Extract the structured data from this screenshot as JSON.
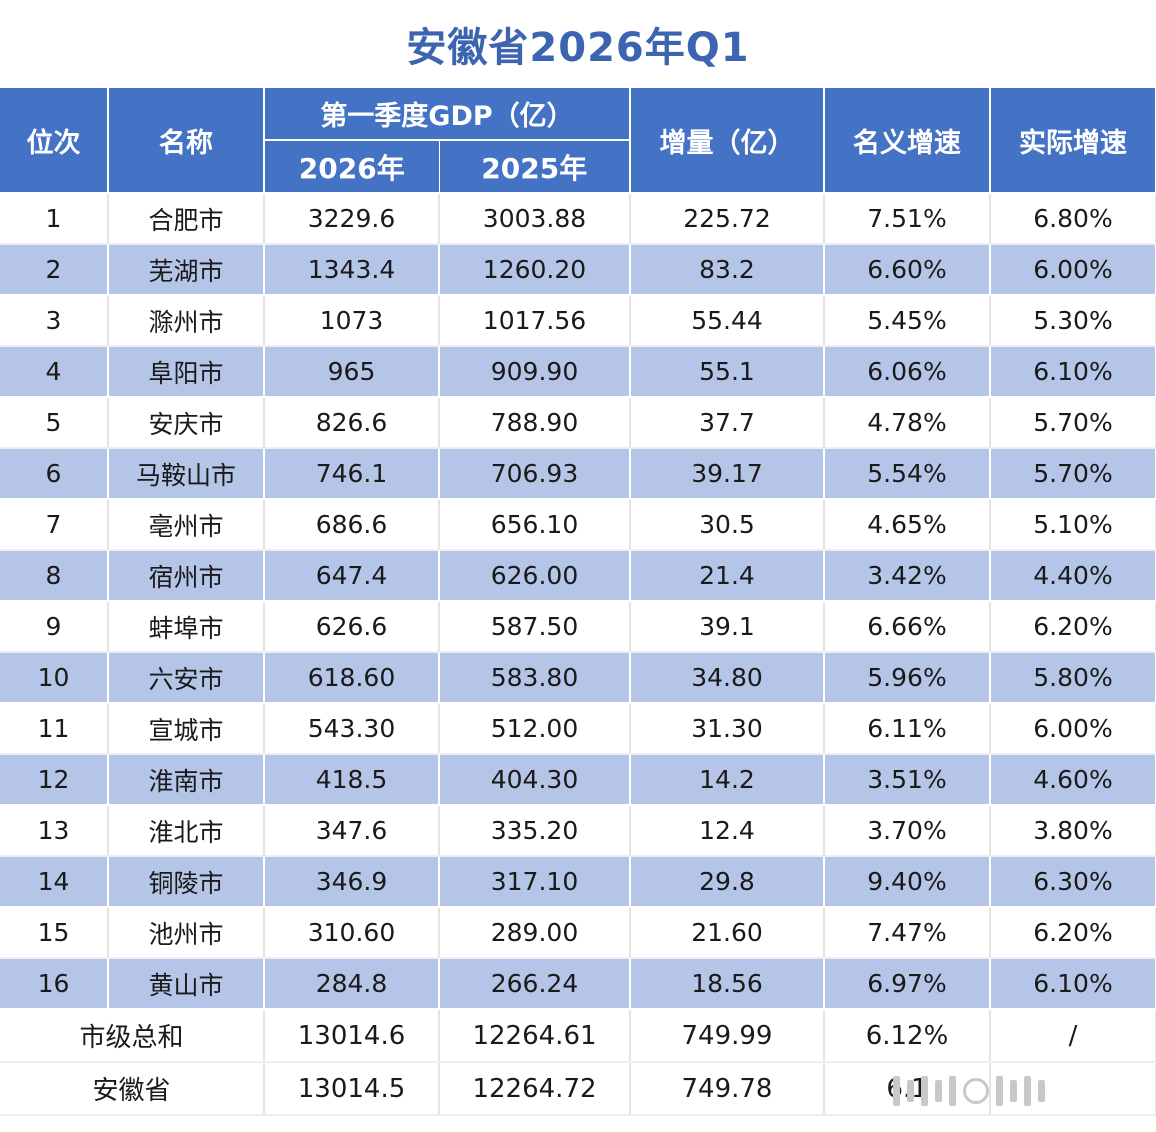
{
  "title": "安徽省2026年Q1",
  "header": {
    "rank": "位次",
    "name": "名称",
    "gdp_group": "第一季度GDP（亿）",
    "year_2026": "2026年",
    "year_2025": "2025年",
    "increase": "增量（亿）",
    "nominal": "名义增速",
    "real": "实际增速"
  },
  "rows": [
    {
      "rank": "1",
      "name": "合肥市",
      "gdp2026": "3229.6",
      "gdp2025": "3003.88",
      "inc": "225.72",
      "nominal": "7.51%",
      "real": "6.80%"
    },
    {
      "rank": "2",
      "name": "芜湖市",
      "gdp2026": "1343.4",
      "gdp2025": "1260.20",
      "inc": "83.2",
      "nominal": "6.60%",
      "real": "6.00%"
    },
    {
      "rank": "3",
      "name": "滁州市",
      "gdp2026": "1073",
      "gdp2025": "1017.56",
      "inc": "55.44",
      "nominal": "5.45%",
      "real": "5.30%"
    },
    {
      "rank": "4",
      "name": "阜阳市",
      "gdp2026": "965",
      "gdp2025": "909.90",
      "inc": "55.1",
      "nominal": "6.06%",
      "real": "6.10%"
    },
    {
      "rank": "5",
      "name": "安庆市",
      "gdp2026": "826.6",
      "gdp2025": "788.90",
      "inc": "37.7",
      "nominal": "4.78%",
      "real": "5.70%"
    },
    {
      "rank": "6",
      "name": "马鞍山市",
      "gdp2026": "746.1",
      "gdp2025": "706.93",
      "inc": "39.17",
      "nominal": "5.54%",
      "real": "5.70%"
    },
    {
      "rank": "7",
      "name": "亳州市",
      "gdp2026": "686.6",
      "gdp2025": "656.10",
      "inc": "30.5",
      "nominal": "4.65%",
      "real": "5.10%"
    },
    {
      "rank": "8",
      "name": "宿州市",
      "gdp2026": "647.4",
      "gdp2025": "626.00",
      "inc": "21.4",
      "nominal": "3.42%",
      "real": "4.40%"
    },
    {
      "rank": "9",
      "name": "蚌埠市",
      "gdp2026": "626.6",
      "gdp2025": "587.50",
      "inc": "39.1",
      "nominal": "6.66%",
      "real": "6.20%"
    },
    {
      "rank": "10",
      "name": "六安市",
      "gdp2026": "618.60",
      "gdp2025": "583.80",
      "inc": "34.80",
      "nominal": "5.96%",
      "real": "5.80%"
    },
    {
      "rank": "11",
      "name": "宣城市",
      "gdp2026": "543.30",
      "gdp2025": "512.00",
      "inc": "31.30",
      "nominal": "6.11%",
      "real": "6.00%"
    },
    {
      "rank": "12",
      "name": "淮南市",
      "gdp2026": "418.5",
      "gdp2025": "404.30",
      "inc": "14.2",
      "nominal": "3.51%",
      "real": "4.60%"
    },
    {
      "rank": "13",
      "name": "淮北市",
      "gdp2026": "347.6",
      "gdp2025": "335.20",
      "inc": "12.4",
      "nominal": "3.70%",
      "real": "3.80%"
    },
    {
      "rank": "14",
      "name": "铜陵市",
      "gdp2026": "346.9",
      "gdp2025": "317.10",
      "inc": "29.8",
      "nominal": "9.40%",
      "real": "6.30%"
    },
    {
      "rank": "15",
      "name": "池州市",
      "gdp2026": "310.60",
      "gdp2025": "289.00",
      "inc": "21.60",
      "nominal": "7.47%",
      "real": "6.20%"
    },
    {
      "rank": "16",
      "name": "黄山市",
      "gdp2026": "284.8",
      "gdp2025": "266.24",
      "inc": "18.56",
      "nominal": "6.97%",
      "real": "6.10%"
    }
  ],
  "totals": [
    {
      "label": "市级总和",
      "gdp2026": "13014.6",
      "gdp2025": "12264.61",
      "inc": "749.99",
      "nominal": "6.12%",
      "real": "/"
    },
    {
      "label": "安徽省",
      "gdp2026": "13014.5",
      "gdp2025": "12264.72",
      "inc": "749.78",
      "nominal": "6.1",
      "real": ""
    }
  ]
}
